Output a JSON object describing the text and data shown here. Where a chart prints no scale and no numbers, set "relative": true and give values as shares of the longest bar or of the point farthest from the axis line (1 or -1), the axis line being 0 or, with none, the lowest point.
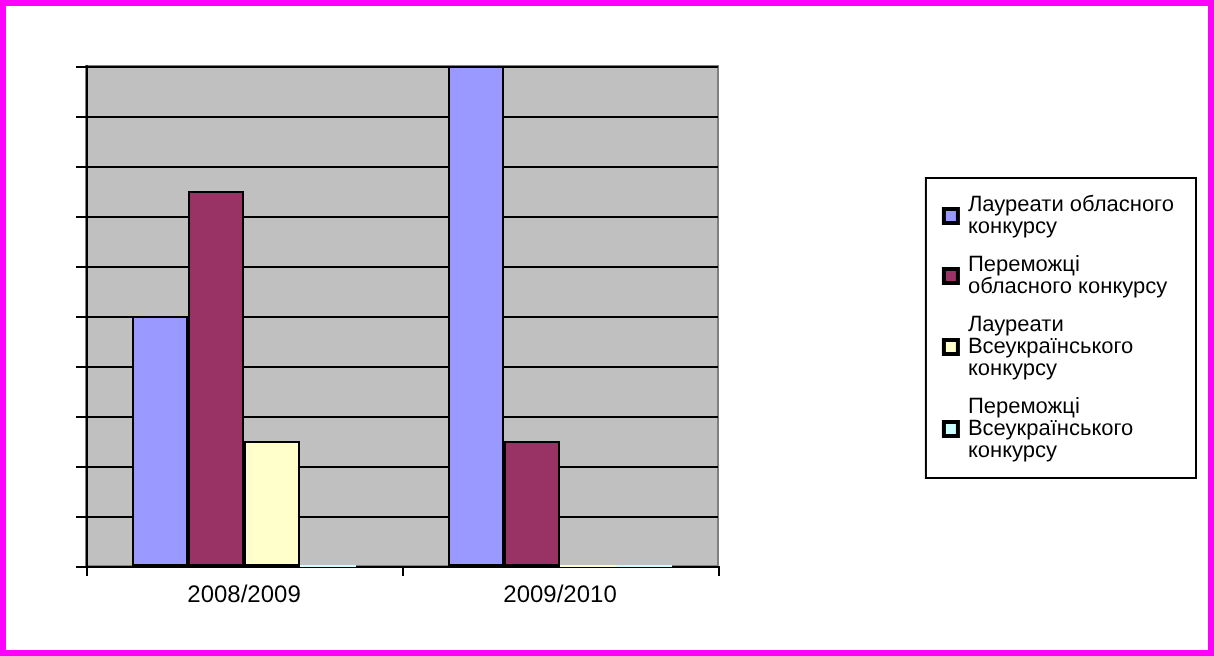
{
  "chart_data": {
    "type": "bar",
    "relative": true,
    "categories": [
      "2008/2009",
      "2009/2010"
    ],
    "series": [
      {
        "name": "Лауреати обласного конкурсу",
        "color": "#9999ff",
        "values": [
          0.5,
          1
        ]
      },
      {
        "name": "Переможці обласного конкурсу",
        "color": "#993366",
        "values": [
          0.75,
          0.25
        ]
      },
      {
        "name": "Лауреати Всеукраїнського конкурсу",
        "color": "#ffffcc",
        "values": [
          0.25,
          0
        ]
      },
      {
        "name": "Переможці Всеукраїнського конкурсу",
        "color": "#ccffff",
        "values": [
          0,
          0
        ]
      }
    ],
    "grid": true,
    "legend": "right"
  }
}
